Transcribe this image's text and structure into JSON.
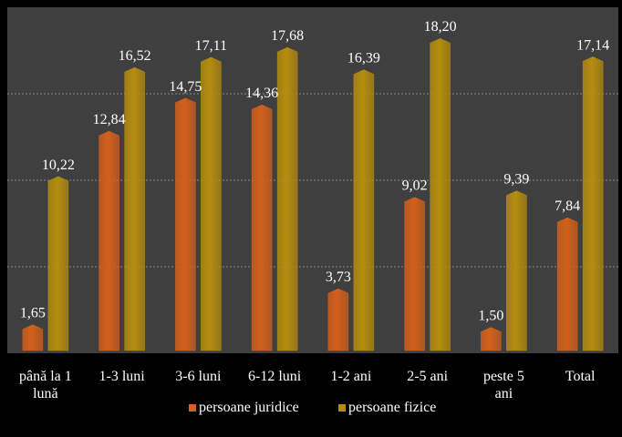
{
  "chart_data": {
    "type": "bar",
    "categories": [
      [
        "până la 1",
        "lună"
      ],
      [
        "1-3 luni"
      ],
      [
        "3-6 luni"
      ],
      [
        "6-12 luni"
      ],
      [
        "1-2 ani"
      ],
      [
        "2-5 ani"
      ],
      [
        "peste 5",
        "ani"
      ],
      [
        "Total"
      ]
    ],
    "series": [
      {
        "name": "persoane juridice",
        "color": "#d4601a",
        "values": [
          1.65,
          12.84,
          14.75,
          14.36,
          3.73,
          9.02,
          1.5,
          7.84
        ],
        "labels": [
          "1,65",
          "12,84",
          "14,75",
          "14,36",
          "3,73",
          "9,02",
          "1,50",
          "7,84"
        ]
      },
      {
        "name": "persoane fizice",
        "color": "#b58d0e",
        "values": [
          10.22,
          16.52,
          17.11,
          17.68,
          16.39,
          18.2,
          9.39,
          17.14
        ],
        "labels": [
          "10,22",
          "16,52",
          "17,11",
          "17,68",
          "16,39",
          "18,20",
          "9,39",
          "17,14"
        ]
      }
    ],
    "ylim": [
      0,
      20
    ],
    "grid": true,
    "legend_position": "bottom",
    "colors": {
      "plot_background": "#3f3f3f",
      "gridline": "#8a8a8a",
      "label_text": "#ffffff"
    }
  }
}
